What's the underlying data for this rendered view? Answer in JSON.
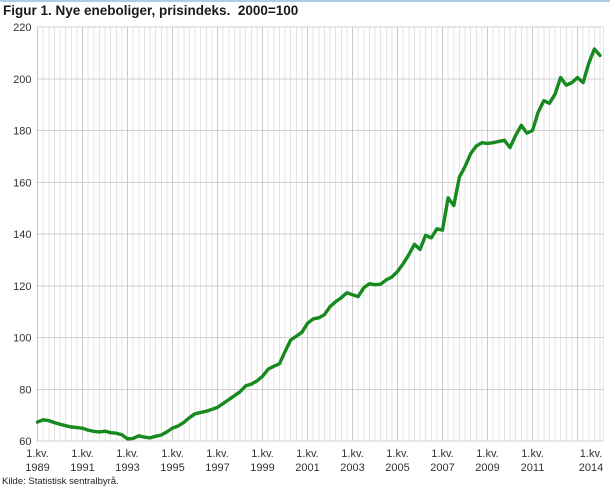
{
  "header": {
    "title": "Figur 1. Nye eneboliger, prisindeks.  2000=100"
  },
  "footer": {
    "source": "Kilde: Statistisk sentralbyrå."
  },
  "chart_data": {
    "type": "line",
    "title": "Figur 1. Nye eneboliger, prisindeks. 2000=100",
    "x_unit": "quarter",
    "x_start": "1.kv. 1989",
    "x_end": "1.kv. 2014",
    "n_points": 101,
    "ylim": [
      60,
      220
    ],
    "y_ticks": [
      60,
      80,
      100,
      120,
      140,
      160,
      180,
      200,
      220
    ],
    "grid": true,
    "legend_position": "none",
    "line_color": "#168a1e",
    "grid_minor_color": "#e4e4e4",
    "grid_major_color": "#c9c9c9",
    "axis_text_color": "#333333",
    "x_ticks": [
      {
        "label_top": "1.kv.",
        "label_bottom": "1989",
        "index": 0
      },
      {
        "label_top": "1.kv.",
        "label_bottom": "1991",
        "index": 8
      },
      {
        "label_top": "1.kv.",
        "label_bottom": "1993",
        "index": 16
      },
      {
        "label_top": "1.kv.",
        "label_bottom": "1995",
        "index": 24
      },
      {
        "label_top": "1.kv.",
        "label_bottom": "1997",
        "index": 32
      },
      {
        "label_top": "1.kv.",
        "label_bottom": "1999",
        "index": 40
      },
      {
        "label_top": "1.kv.",
        "label_bottom": "2001",
        "index": 48
      },
      {
        "label_top": "1.kv.",
        "label_bottom": "2003",
        "index": 56
      },
      {
        "label_top": "1.kv.",
        "label_bottom": "2005",
        "index": 64
      },
      {
        "label_top": "1.kv.",
        "label_bottom": "2007",
        "index": 72
      },
      {
        "label_top": "1.kv.",
        "label_bottom": "2009",
        "index": 80
      },
      {
        "label_top": "1.kv.",
        "label_bottom": "2011",
        "index": 88
      },
      {
        "label_top": "1.kv.",
        "label_bottom": "2014",
        "index": 100
      }
    ],
    "series": [
      {
        "name": "Prisindeks nye eneboliger, 2000=100",
        "values": [
          67.3,
          68.2,
          67.9,
          67.1,
          66.5,
          65.9,
          65.4,
          65.2,
          64.9,
          64.2,
          63.7,
          63.5,
          63.8,
          63.2,
          63.0,
          62.4,
          60.8,
          61.0,
          62.0,
          61.5,
          61.2,
          61.8,
          62.3,
          63.5,
          65.0,
          65.8,
          67.2,
          69.0,
          70.5,
          71.0,
          71.5,
          72.2,
          73.0,
          74.5,
          76.0,
          77.5,
          79.0,
          81.3,
          82.0,
          83.2,
          85.0,
          87.7,
          88.9,
          89.8,
          94.5,
          99.0,
          100.5,
          102.0,
          105.5,
          107.2,
          107.6,
          108.8,
          111.9,
          113.8,
          115.4,
          117.3,
          116.5,
          115.8,
          119.2,
          120.8,
          120.4,
          120.6,
          122.3,
          123.4,
          125.5,
          128.5,
          132.0,
          136.0,
          134.0,
          139.5,
          138.5,
          142.0,
          141.5,
          154.0,
          151.0,
          162.0,
          166.0,
          171.0,
          174.0,
          175.3,
          175.0,
          175.3,
          175.8,
          176.2,
          173.4,
          178.1,
          182.0,
          179.0,
          180.0,
          187.0,
          191.5,
          190.5,
          194.0,
          200.5,
          197.5,
          198.5,
          200.5,
          198.5,
          206.0,
          211.5,
          209.0
        ]
      }
    ]
  }
}
